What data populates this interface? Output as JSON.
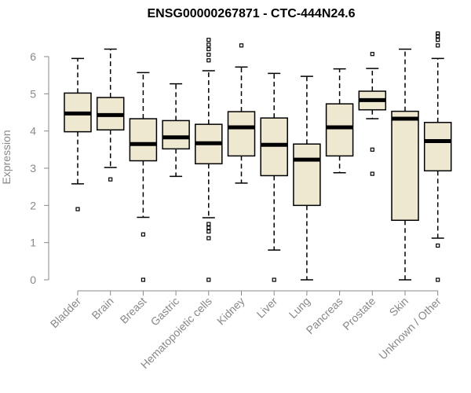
{
  "chart_data": {
    "type": "boxplot",
    "title": "ENSG00000267871 - CTC-444N24.6",
    "xlabel": "",
    "ylabel": "Expression",
    "ylim": [
      0,
      6.5
    ],
    "yticks": [
      0,
      1,
      2,
      3,
      4,
      5,
      6
    ],
    "box_color": "#EEE8D0",
    "categories": [
      "Bladder",
      "Brain",
      "Breast",
      "Gastric",
      "Hematopoietic cells",
      "Kidney",
      "Liver",
      "Lung",
      "Pancreas",
      "Prostate",
      "Skin",
      "Unknown / Other"
    ],
    "tick_labels": [
      "Bladder",
      "Brain",
      "Breast",
      "Gastric",
      "Hematopoietic cells",
      "Kidney",
      "Liver",
      "Lung",
      "Pancreas",
      "Prostate",
      "Skin",
      "Unknown / Other"
    ],
    "boxes": [
      {
        "name": "Bladder",
        "whisker_low": 2.58,
        "q1": 3.98,
        "median": 4.47,
        "q3": 5.02,
        "whisker_high": 5.95,
        "outliers": [
          1.9
        ]
      },
      {
        "name": "Brain",
        "whisker_low": 3.02,
        "q1": 4.03,
        "median": 4.43,
        "q3": 4.9,
        "whisker_high": 6.2,
        "outliers": [
          2.7
        ]
      },
      {
        "name": "Breast",
        "whisker_low": 1.68,
        "q1": 3.2,
        "median": 3.65,
        "q3": 4.33,
        "whisker_high": 5.57,
        "outliers": [
          1.22,
          0.0
        ]
      },
      {
        "name": "Gastric",
        "whisker_low": 2.78,
        "q1": 3.52,
        "median": 3.83,
        "q3": 4.28,
        "whisker_high": 5.27,
        "outliers": []
      },
      {
        "name": "Hematopoietic cells",
        "whisker_low": 1.67,
        "q1": 3.12,
        "median": 3.67,
        "q3": 4.18,
        "whisker_high": 5.62,
        "outliers": [
          6.45,
          6.32,
          6.2,
          6.05,
          5.9,
          1.5,
          1.4,
          1.3,
          1.12,
          0.0
        ]
      },
      {
        "name": "Kidney",
        "whisker_low": 2.6,
        "q1": 3.33,
        "median": 4.1,
        "q3": 4.52,
        "whisker_high": 5.72,
        "outliers": [
          6.3
        ]
      },
      {
        "name": "Liver",
        "whisker_low": 0.8,
        "q1": 2.8,
        "median": 3.63,
        "q3": 4.35,
        "whisker_high": 5.55,
        "outliers": [
          0.0
        ]
      },
      {
        "name": "Lung",
        "whisker_low": 0.0,
        "q1": 2.0,
        "median": 3.23,
        "q3": 3.65,
        "whisker_high": 5.47,
        "outliers": []
      },
      {
        "name": "Pancreas",
        "whisker_low": 2.88,
        "q1": 3.33,
        "median": 4.1,
        "q3": 4.73,
        "whisker_high": 5.67,
        "outliers": []
      },
      {
        "name": "Prostate",
        "whisker_low": 4.33,
        "q1": 4.57,
        "median": 4.83,
        "q3": 5.07,
        "whisker_high": 5.68,
        "outliers": [
          6.07,
          3.5,
          2.85
        ]
      },
      {
        "name": "Skin",
        "whisker_low": 0.0,
        "q1": 1.6,
        "median": 4.33,
        "q3": 4.53,
        "whisker_high": 6.2,
        "outliers": []
      },
      {
        "name": "Unknown / Other",
        "whisker_low": 1.12,
        "q1": 2.93,
        "median": 3.73,
        "q3": 4.23,
        "whisker_high": 5.95,
        "outliers": [
          6.62,
          6.55,
          6.45,
          6.3,
          0.92,
          0.0
        ]
      }
    ]
  }
}
